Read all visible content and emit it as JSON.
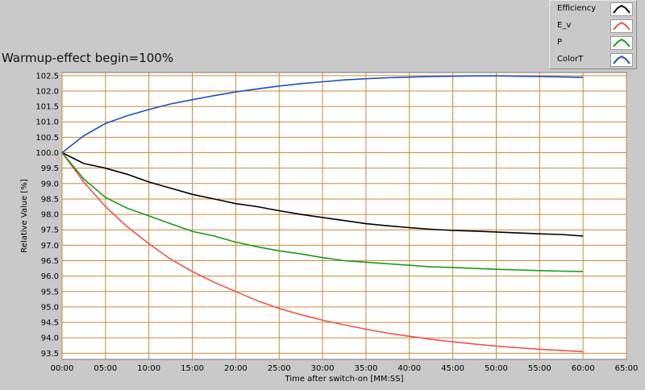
{
  "title": "Warmup-effect begin=100%",
  "legend": [
    {
      "label": "Efficiency",
      "color": "#000000"
    },
    {
      "label": "E_v",
      "color": "#f05050"
    },
    {
      "label": "P",
      "color": "#1a9a1a"
    },
    {
      "label": "ColorT",
      "color": "#1f4fbf"
    }
  ],
  "chart_data": {
    "type": "line",
    "title": "Warmup-effect begin=100%",
    "xlabel": "Time after switch-on [MM:SS]",
    "ylabel": "Relative Value [%]",
    "xlim": [
      0,
      65
    ],
    "ylim": [
      93.3,
      102.6
    ],
    "x_ticks": [
      0,
      5,
      10,
      15,
      20,
      25,
      30,
      35,
      40,
      45,
      50,
      55,
      60,
      65
    ],
    "x_tick_labels": [
      "00:00",
      "05:00",
      "10:00",
      "15:00",
      "20:00",
      "25:00",
      "30:00",
      "35:00",
      "40:00",
      "45:00",
      "50:00",
      "55:00",
      "60:00",
      "65:00"
    ],
    "y_ticks": [
      93.5,
      94.0,
      94.5,
      95.0,
      95.5,
      96.0,
      96.5,
      97.0,
      97.5,
      98.0,
      98.5,
      99.0,
      99.5,
      100.0,
      100.5,
      101.0,
      101.5,
      102.0,
      102.5
    ],
    "y_tick_labels": [
      "93.5",
      "94.0",
      "94.5",
      "95.0",
      "95.5",
      "96.0",
      "96.5",
      "97.0",
      "97.5",
      "98.0",
      "98.5",
      "99.0",
      "99.5",
      "100.0",
      "100.5",
      "101.0",
      "101.5",
      "102.0",
      "102.5"
    ],
    "grid": true,
    "legend_position": "top-right",
    "x": [
      0,
      2.5,
      5,
      7.5,
      10,
      12.5,
      15,
      17.5,
      20,
      22.5,
      25,
      27.5,
      30,
      32.5,
      35,
      37.5,
      40,
      42.5,
      45,
      47.5,
      50,
      52.5,
      55,
      57.5,
      60
    ],
    "series": [
      {
        "name": "Efficiency",
        "color": "#000000",
        "values": [
          100.0,
          99.65,
          99.5,
          99.3,
          99.05,
          98.85,
          98.65,
          98.5,
          98.35,
          98.25,
          98.12,
          98.0,
          97.9,
          97.8,
          97.7,
          97.63,
          97.57,
          97.52,
          97.48,
          97.46,
          97.43,
          97.4,
          97.37,
          97.35,
          97.3
        ]
      },
      {
        "name": "E_v",
        "color": "#f05050",
        "values": [
          100.0,
          99.05,
          98.25,
          97.6,
          97.05,
          96.55,
          96.15,
          95.8,
          95.5,
          95.2,
          94.95,
          94.75,
          94.57,
          94.42,
          94.28,
          94.15,
          94.05,
          93.95,
          93.87,
          93.8,
          93.73,
          93.68,
          93.63,
          93.59,
          93.55
        ]
      },
      {
        "name": "P",
        "color": "#1a9a1a",
        "values": [
          100.0,
          99.15,
          98.55,
          98.2,
          97.95,
          97.7,
          97.45,
          97.3,
          97.1,
          96.95,
          96.82,
          96.72,
          96.6,
          96.5,
          96.45,
          96.4,
          96.35,
          96.3,
          96.28,
          96.25,
          96.22,
          96.2,
          96.18,
          96.16,
          96.15
        ]
      },
      {
        "name": "ColorT",
        "color": "#1f4fbf",
        "values": [
          100.0,
          100.55,
          100.95,
          101.2,
          101.4,
          101.58,
          101.72,
          101.85,
          101.97,
          102.07,
          102.16,
          102.24,
          102.3,
          102.36,
          102.4,
          102.43,
          102.45,
          102.47,
          102.48,
          102.49,
          102.49,
          102.48,
          102.47,
          102.46,
          102.44
        ]
      }
    ]
  }
}
